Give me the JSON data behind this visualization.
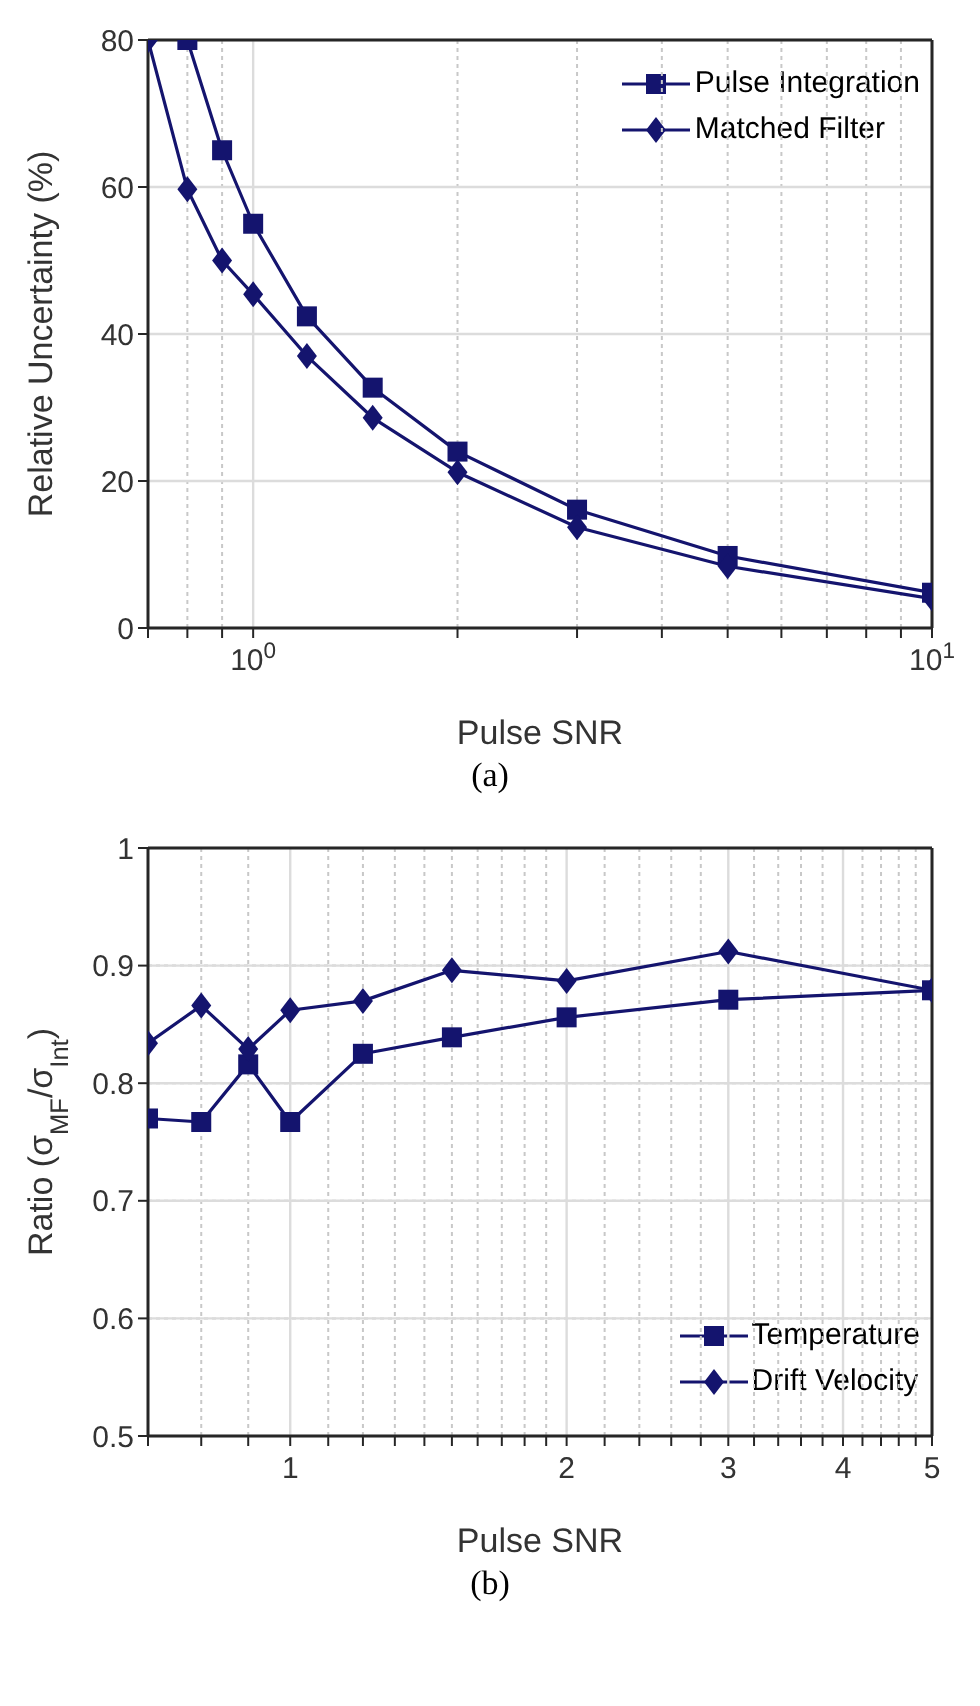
{
  "chart_data": [
    {
      "type": "line",
      "title": "(a)",
      "xlabel": "Pulse SNR",
      "ylabel": "Relative Uncertainty (%)",
      "log": "x",
      "series": [
        {
          "name": "Pulse Integration",
          "color": "#14146e",
          "marker": "square",
          "x": [
            0.8,
            0.9,
            1,
            1.2,
            1.5,
            2,
            3,
            5,
            10
          ],
          "values": [
            80,
            65,
            55,
            42.4,
            32.7,
            24,
            16.1,
            9.8,
            4.8
          ]
        },
        {
          "name": "Matched Filter",
          "color": "#14146e",
          "marker": "diamond",
          "x": [
            0.7,
            0.8,
            0.9,
            1,
            1.2,
            1.5,
            2,
            3,
            5,
            10
          ],
          "values": [
            80,
            59.7,
            50,
            45.4,
            37,
            28.6,
            21.2,
            13.7,
            8.4,
            4
          ]
        }
      ],
      "xlim": [
        0.7,
        10
      ],
      "xticks": [
        {
          "value": 0.7,
          "label": null
        },
        {
          "value": 0.8,
          "label": null
        },
        {
          "value": 0.9,
          "label": null
        },
        {
          "value": 1,
          "label": "10$^{0}$"
        },
        {
          "value": 2,
          "label": null
        },
        {
          "value": 3,
          "label": null
        },
        {
          "value": 4,
          "label": null
        },
        {
          "value": 5,
          "label": null
        },
        {
          "value": 6,
          "label": null
        },
        {
          "value": 7,
          "label": null
        },
        {
          "value": 8,
          "label": null
        },
        {
          "value": 9,
          "label": null
        },
        {
          "value": 10,
          "label": "10$^{1}$"
        }
      ],
      "ylim": [
        0,
        80
      ],
      "yticks": [
        0,
        20,
        40,
        60,
        80
      ],
      "grid": true,
      "legend": "top right",
      "line_style": "solid"
    },
    {
      "type": "line",
      "title": "(b)",
      "xlabel": "Pulse SNR",
      "ylabel": "Ratio (σ$_{MF}$/σ$_{Int}$)",
      "log": "x",
      "x": [
        0.7,
        0.8,
        0.9,
        1,
        1.2,
        1.5,
        2,
        3,
        5
      ],
      "series": [
        {
          "name": "Temperature",
          "color": "#14146e",
          "marker": "square",
          "values": [
            0.77,
            0.767,
            0.816,
            0.767,
            0.825,
            0.839,
            0.856,
            0.871,
            0.879
          ]
        },
        {
          "name": "Drift Velocity",
          "color": "#14146e",
          "marker": "diamond",
          "values": [
            0.834,
            0.866,
            0.829,
            0.862,
            0.87,
            0.896,
            0.887,
            0.912,
            0.879
          ]
        }
      ],
      "xlim": [
        0.7,
        5
      ],
      "xticks": [
        {
          "value": 0.7,
          "label": null
        },
        {
          "value": 0.8,
          "label": null
        },
        {
          "value": 0.9,
          "label": null
        },
        1,
        {
          "value": 1.1,
          "label": null
        },
        {
          "value": 1.2,
          "label": null
        },
        {
          "value": 1.3,
          "label": null
        },
        {
          "value": 1.4,
          "label": null
        },
        {
          "value": 1.5,
          "label": null
        },
        {
          "value": 1.6,
          "label": null
        },
        {
          "value": 1.7,
          "label": null
        },
        {
          "value": 1.8,
          "label": null
        },
        {
          "value": 1.9,
          "label": null
        },
        2,
        {
          "value": 2.2,
          "label": null
        },
        {
          "value": 2.4,
          "label": null
        },
        {
          "value": 2.6,
          "label": null
        },
        {
          "value": 2.8,
          "label": null
        },
        3,
        {
          "value": 3.2,
          "label": null
        },
        {
          "value": 3.4,
          "label": null
        },
        {
          "value": 3.6,
          "label": null
        },
        {
          "value": 3.8,
          "label": null
        },
        4,
        {
          "value": 4.2,
          "label": null
        },
        {
          "value": 4.4,
          "label": null
        },
        {
          "value": 4.6,
          "label": null
        },
        {
          "value": 4.8,
          "label": null
        },
        5
      ],
      "ylim": [
        0.5,
        1
      ],
      "yticks": [
        0.5,
        0.6,
        0.7,
        0.8,
        0.9,
        1
      ],
      "grid": true,
      "legend": "bottom right",
      "line_style": "solid"
    }
  ]
}
